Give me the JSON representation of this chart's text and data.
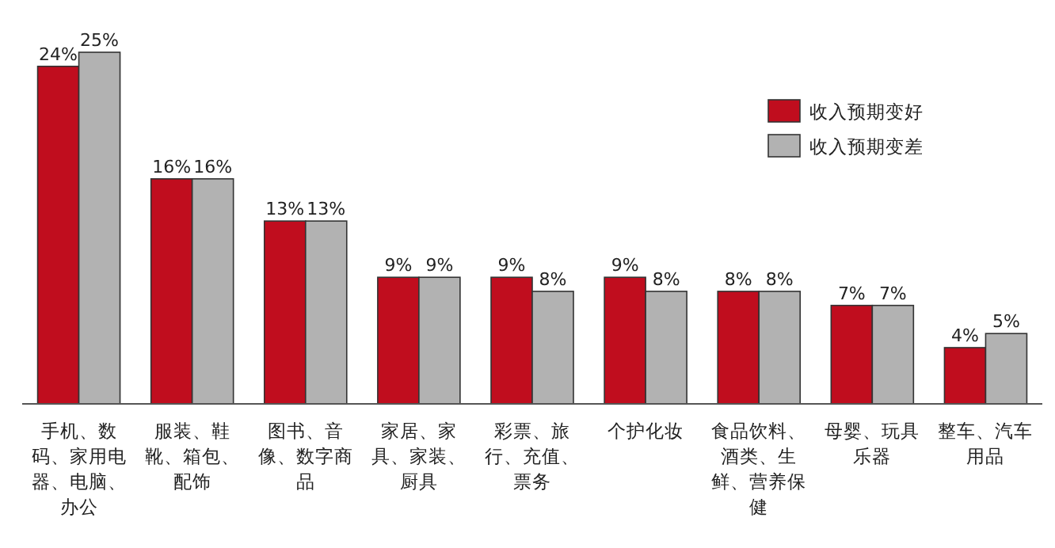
{
  "chart_data": {
    "type": "bar",
    "categories": [
      "手机、数码、家用电器、电脑、办公",
      "服装、鞋靴、箱包、配饰",
      "图书、音像、数字商品",
      "家居、家具、家装、厨具",
      "彩票、旅行、充值、票务",
      "个护化妆",
      "食品饮料、酒类、生鲜、营养保健",
      "母婴、玩具乐器",
      "整车、汽车用品"
    ],
    "series": [
      {
        "name": "收入预期变好",
        "color": "#c00d1e",
        "values": [
          24,
          16,
          13,
          9,
          9,
          9,
          8,
          7,
          4
        ],
        "value_labels": [
          "24%",
          "16%",
          "13%",
          "9%",
          "9%",
          "9%",
          "8%",
          "7%",
          "4%"
        ]
      },
      {
        "name": "收入预期变差",
        "color": "#b2b2b2",
        "values": [
          25,
          16,
          13,
          9,
          8,
          8,
          8,
          7,
          5
        ],
        "value_labels": [
          "25%",
          "16%",
          "13%",
          "9%",
          "8%",
          "8%",
          "8%",
          "7%",
          "5%"
        ]
      }
    ],
    "legend": "top right"
  }
}
